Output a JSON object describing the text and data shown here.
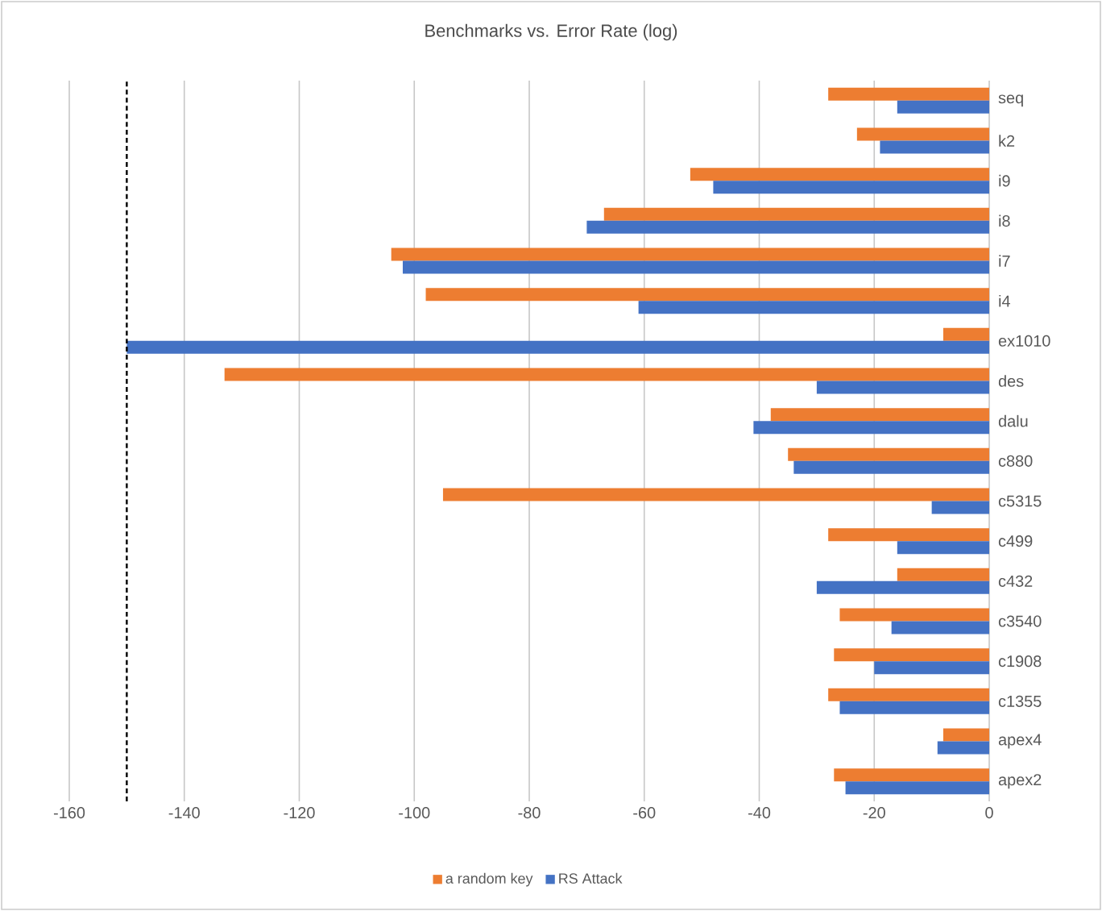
{
  "chart_data": {
    "type": "bar",
    "orientation": "horizontal",
    "title": "Benchmarks vs. Error Rate (log)",
    "categories": [
      "seq",
      "k2",
      "i9",
      "i8",
      "i7",
      "i4",
      "ex1010",
      "des",
      "dalu",
      "c880",
      "c5315",
      "c499",
      "c432",
      "c3540",
      "c1908",
      "c1355",
      "apex4",
      "apex2"
    ],
    "series": [
      {
        "name": "a random key",
        "color": "#ed7d31",
        "values": [
          -28,
          -23,
          -52,
          -67,
          -104,
          -98,
          -8,
          -133,
          -38,
          -35,
          -95,
          -28,
          -16,
          -26,
          -27,
          -28,
          -8,
          -27
        ]
      },
      {
        "name": "RS Attack",
        "color": "#4472c4",
        "values": [
          -16,
          -19,
          -48,
          -70,
          -102,
          -61,
          -150,
          -30,
          -41,
          -34,
          -10,
          -16,
          -30,
          -17,
          -20,
          -26,
          -9,
          -25
        ]
      }
    ],
    "xlim": [
      -160,
      0
    ],
    "xticks": [
      -160,
      -140,
      -120,
      -100,
      -80,
      -60,
      -40,
      -20,
      0
    ],
    "ref_lines": [
      {
        "axis": "x",
        "value": -150,
        "color": "#000000",
        "line_style": "dashed"
      }
    ],
    "grid": "x",
    "legend": "bottom"
  }
}
